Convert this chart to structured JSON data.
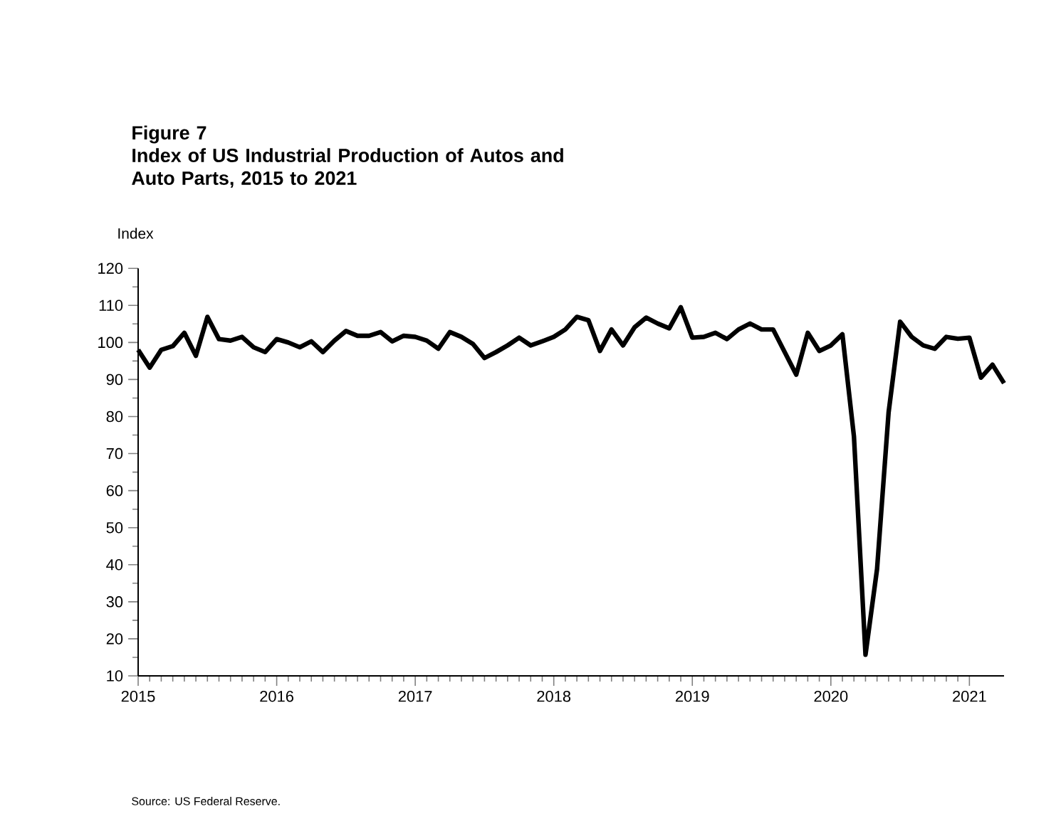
{
  "chart_data": {
    "type": "line",
    "title": "Figure 7",
    "subtitle": "Index of US Industrial Production of Autos and Auto Parts, 2015 to 2021",
    "ylabel": "Index",
    "annotations": [
      "Source: US Federal Reserve."
    ],
    "x": [
      "2015-01",
      "2015-02",
      "2015-03",
      "2015-04",
      "2015-05",
      "2015-06",
      "2015-07",
      "2015-08",
      "2015-09",
      "2015-10",
      "2015-11",
      "2015-12",
      "2016-01",
      "2016-02",
      "2016-03",
      "2016-04",
      "2016-05",
      "2016-06",
      "2016-07",
      "2016-08",
      "2016-09",
      "2016-10",
      "2016-11",
      "2016-12",
      "2017-01",
      "2017-02",
      "2017-03",
      "2017-04",
      "2017-05",
      "2017-06",
      "2017-07",
      "2017-08",
      "2017-09",
      "2017-10",
      "2017-11",
      "2017-12",
      "2018-01",
      "2018-02",
      "2018-03",
      "2018-04",
      "2018-05",
      "2018-06",
      "2018-07",
      "2018-08",
      "2018-09",
      "2018-10",
      "2018-11",
      "2018-12",
      "2019-01",
      "2019-02",
      "2019-03",
      "2019-04",
      "2019-05",
      "2019-06",
      "2019-07",
      "2019-08",
      "2019-09",
      "2019-10",
      "2019-11",
      "2019-12",
      "2020-01",
      "2020-02",
      "2020-03",
      "2020-04",
      "2020-05",
      "2020-06",
      "2020-07",
      "2020-08",
      "2020-09",
      "2020-10",
      "2020-11",
      "2020-12",
      "2021-01",
      "2021-02",
      "2021-03",
      "2021-04"
    ],
    "series": [
      {
        "color": "#000000",
        "values": [
          98,
          93.2,
          98,
          99,
          102.6,
          96.4,
          106.9,
          100.9,
          100.5,
          101.5,
          98.7,
          97.4,
          100.9,
          100,
          98.7,
          100.3,
          97.4,
          100.5,
          103.1,
          101.8,
          101.8,
          102.8,
          100.3,
          101.8,
          101.5,
          100.5,
          98.3,
          102.8,
          101.5,
          99.6,
          95.8,
          97.4,
          99.2,
          101.3,
          99.2,
          100.3,
          101.5,
          103.5,
          106.9,
          106,
          97.7,
          103.5,
          99.2,
          104.1,
          106.7,
          105.1,
          103.8,
          109.5,
          101.3,
          101.5,
          102.6,
          100.9,
          103.5,
          105.1,
          103.5,
          103.5,
          97.4,
          91.3,
          102.6,
          97.7,
          99.2,
          102.2,
          74.6,
          15.7,
          38.8,
          81.1,
          105.6,
          101.5,
          99.2,
          98.3,
          101.5,
          101,
          101.3,
          90.5,
          94,
          89
        ]
      }
    ],
    "xlim": [
      "2015-01",
      "2021-04"
    ],
    "xticks": [
      "2015",
      "2016",
      "2017",
      "2018",
      "2019",
      "2020",
      "2021"
    ],
    "ylim": [
      10,
      120
    ],
    "yticks": [
      10,
      20,
      30,
      40,
      50,
      60,
      70,
      80,
      90,
      100,
      110,
      120
    ],
    "grid": false,
    "marker": "none",
    "line_style": "solid"
  }
}
